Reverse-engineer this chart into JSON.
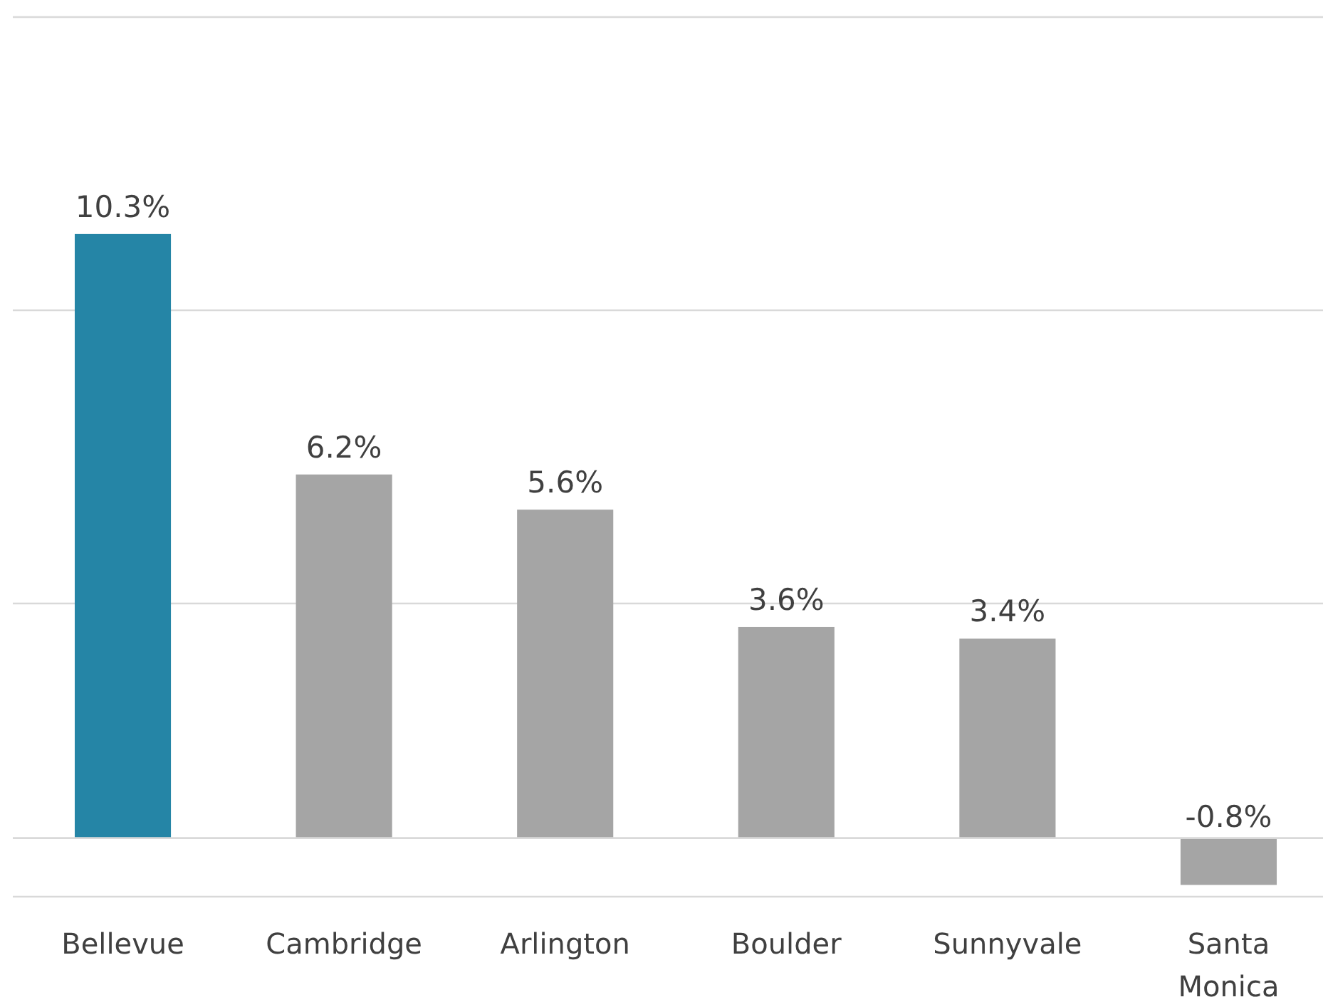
{
  "chart_data": {
    "type": "bar",
    "categories": [
      "Bellevue",
      "Cambridge",
      "Arlington",
      "Boulder",
      "Sunnyvale",
      "Santa Monica"
    ],
    "values": [
      10.3,
      6.2,
      5.6,
      3.6,
      3.4,
      -0.8
    ],
    "colors": [
      "#2585a6",
      "#a5a5a5",
      "#a5a5a5",
      "#a5a5a5",
      "#a5a5a5",
      "#a5a5a5"
    ],
    "value_labels": [
      "10.3%",
      "6.2%",
      "5.6%",
      "3.6%",
      "3.4%",
      "-0.8%"
    ],
    "ylim": [
      -1,
      14
    ],
    "yticks": [
      {
        "value": -1,
        "label": null
      },
      {
        "value": 4,
        "label": null
      },
      {
        "value": 9,
        "label": null
      },
      {
        "value": 14,
        "label": null
      }
    ],
    "grid": "y",
    "tick_labels": "x"
  }
}
